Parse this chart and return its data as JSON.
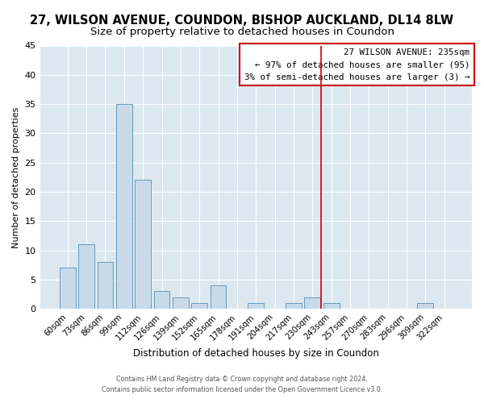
{
  "title": "27, WILSON AVENUE, COUNDON, BISHOP AUCKLAND, DL14 8LW",
  "subtitle": "Size of property relative to detached houses in Coundon",
  "xlabel": "Distribution of detached houses by size in Coundon",
  "ylabel": "Number of detached properties",
  "bar_labels": [
    "60sqm",
    "73sqm",
    "86sqm",
    "99sqm",
    "112sqm",
    "126sqm",
    "139sqm",
    "152sqm",
    "165sqm",
    "178sqm",
    "191sqm",
    "204sqm",
    "217sqm",
    "230sqm",
    "243sqm",
    "257sqm",
    "270sqm",
    "283sqm",
    "296sqm",
    "309sqm",
    "322sqm"
  ],
  "bar_values": [
    7,
    11,
    8,
    35,
    22,
    3,
    2,
    1,
    4,
    0,
    1,
    0,
    1,
    2,
    1,
    0,
    0,
    0,
    0,
    1,
    0
  ],
  "bar_color": "#c8daea",
  "bar_edge_color": "#6699bb",
  "ylim": [
    0,
    45
  ],
  "yticks": [
    0,
    5,
    10,
    15,
    20,
    25,
    30,
    35,
    40,
    45
  ],
  "vline_color": "#cc0000",
  "annotation_title": "27 WILSON AVENUE: 235sqm",
  "annotation_line1": "← 97% of detached houses are smaller (95)",
  "annotation_line2": "3% of semi-detached houses are larger (3) →",
  "footer_line1": "Contains HM Land Registry data © Crown copyright and database right 2024.",
  "footer_line2": "Contains public sector information licensed under the Open Government Licence v3.0.",
  "plot_bg_color": "#dce8f0",
  "fig_bg_color": "#ffffff",
  "title_fontsize": 10.5,
  "subtitle_fontsize": 9.5,
  "vline_x_index": 13.46
}
